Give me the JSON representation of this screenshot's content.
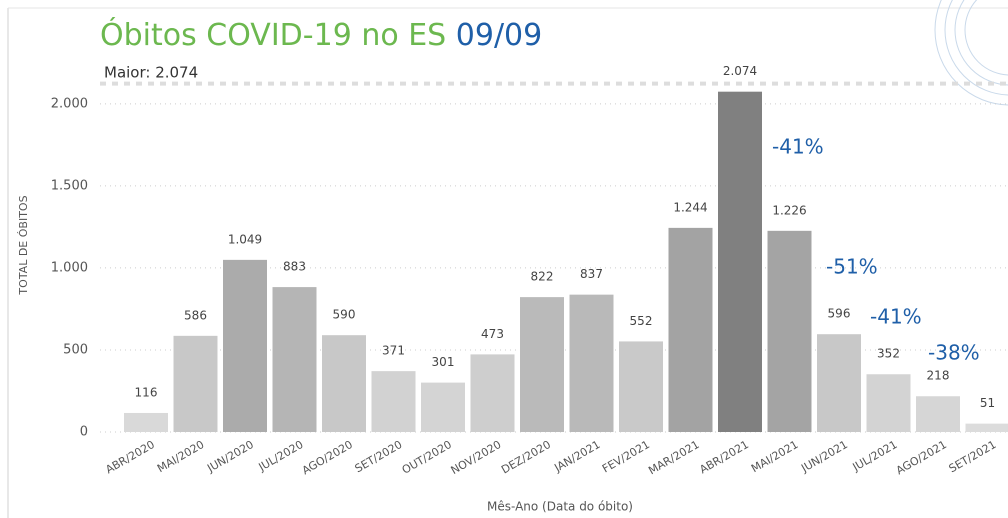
{
  "chart_data": {
    "type": "bar",
    "title": "Óbitos COVID-19 no ES",
    "title_date": "09/09",
    "y_label": "TOTAL DE ÓBITOS",
    "x_label": "Mês-Ano (Data do óbito)",
    "categories": [
      "ABR/2020",
      "MAI/2020",
      "JUN/2020",
      "JUL/2020",
      "AGO/2020",
      "SET/2020",
      "OUT/2020",
      "NOV/2020",
      "DEZ/2020",
      "JAN/2021",
      "FEV/2021",
      "MAR/2021",
      "ABR/2021",
      "MAI/2021",
      "JUN/2021",
      "JUL/2021",
      "AGO/2021",
      "SET/2021"
    ],
    "values": [
      116,
      586,
      1049,
      883,
      590,
      371,
      301,
      473,
      822,
      837,
      552,
      1244,
      2074,
      1226,
      596,
      352,
      218,
      51
    ],
    "value_labels": [
      "116",
      "586",
      "1.049",
      "883",
      "590",
      "371",
      "301",
      "473",
      "822",
      "837",
      "552",
      "1.244",
      "2.074",
      "1.226",
      "596",
      "352",
      "218",
      "51"
    ],
    "colors": [
      "#d9d9d9",
      "#c8c8c8",
      "#ababab",
      "#b5b5b5",
      "#c8c8c8",
      "#d2d2d2",
      "#d4d4d4",
      "#cecece",
      "#bababa",
      "#b9b9b9",
      "#c9c9c9",
      "#a3a3a3",
      "#808080",
      "#a4a4a4",
      "#c8c8c8",
      "#d3d3d3",
      "#d6d6d6",
      "#dcdcdc"
    ],
    "ylim": [
      0,
      2200
    ],
    "yticks": [
      0,
      500,
      {
        "value": 1000,
        "label": "1.000"
      },
      {
        "value": 1500,
        "label": "1.500"
      },
      {
        "value": 2000,
        "label": "2.000"
      }
    ],
    "grid": true,
    "reference_line": {
      "value": 2074,
      "label": "Maior: 2.074"
    },
    "annotations": [
      "-41%",
      "-51%",
      "-41%",
      "-38%"
    ]
  }
}
